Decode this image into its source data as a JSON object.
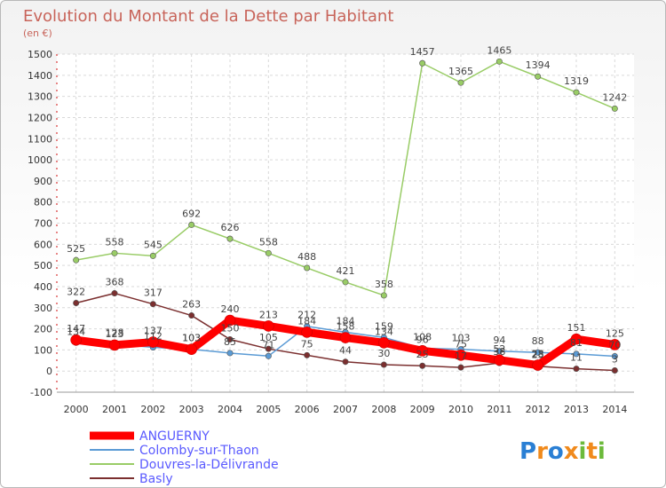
{
  "chart_data": {
    "type": "line",
    "title": "Evolution du Montant de la Dette par Habitant",
    "subtitle": "(en €)",
    "xlabel": "",
    "ylabel": "",
    "ylim": [
      -100,
      1500
    ],
    "yticks": [
      -100,
      0,
      100,
      200,
      300,
      400,
      500,
      600,
      700,
      800,
      900,
      1000,
      1100,
      1200,
      1300,
      1400,
      1500
    ],
    "categories": [
      "2000",
      "2001",
      "2002",
      "2003",
      "2004",
      "2005",
      "2006",
      "2007",
      "2008",
      "2009",
      "2010",
      "2011",
      "2012",
      "2013",
      "2014"
    ],
    "grid": true,
    "legend_position": "bottom-left",
    "series": [
      {
        "name": "ANGUERNY",
        "color": "#ff0000",
        "values": [
          147,
          123,
          137,
          103,
          240,
          213,
          184,
          158,
          134,
          96,
          75,
          52,
          28,
          151,
          125
        ],
        "labels": [
          "147",
          "123",
          "137",
          "103",
          "240",
          "213",
          "184",
          "158",
          "134",
          "96",
          "75",
          "52",
          "28",
          "151",
          "125"
        ]
      },
      {
        "name": "Colomby-sur-Thaon",
        "color": "#5b9bd5",
        "values": [
          134,
          128,
          112,
          103,
          85,
          71,
          212,
          184,
          159,
          108,
          103,
          94,
          88,
          81,
          70
        ],
        "labels": [
          "134",
          "128",
          "112",
          "103",
          "85",
          "71",
          "212",
          "184",
          "159",
          "108",
          "103",
          "94",
          "88",
          "81",
          "70"
        ]
      },
      {
        "name": "Douvres-la-Délivrande",
        "color": "#99cc66",
        "values": [
          525,
          558,
          545,
          692,
          626,
          558,
          488,
          421,
          358,
          1457,
          1365,
          1465,
          1394,
          1319,
          1242
        ],
        "labels": [
          "525",
          "558",
          "545",
          "692",
          "626",
          "558",
          "488",
          "421",
          "358",
          "1457",
          "1365",
          "1465",
          "1394",
          "1319",
          "1242"
        ]
      },
      {
        "name": "Basly",
        "color": "#7b2f2f",
        "values": [
          322,
          368,
          317,
          263,
          150,
          105,
          75,
          44,
          30,
          25,
          17,
          38,
          23,
          11,
          3
        ],
        "labels": [
          "322",
          "368",
          "317",
          "263",
          "150",
          "105",
          "75",
          "44",
          "30",
          "25",
          "17",
          "38",
          "23",
          "11",
          "3"
        ]
      }
    ]
  },
  "logo": {
    "text": "Proxiti",
    "letters": [
      "P",
      "r",
      "o",
      "x",
      "i",
      "t",
      "i"
    ],
    "colors": [
      "#2a7fd4",
      "#f08a1c",
      "#2a7fd4",
      "#f08a1c",
      "#6cba3b",
      "#f08a1c",
      "#6cba3b"
    ]
  }
}
